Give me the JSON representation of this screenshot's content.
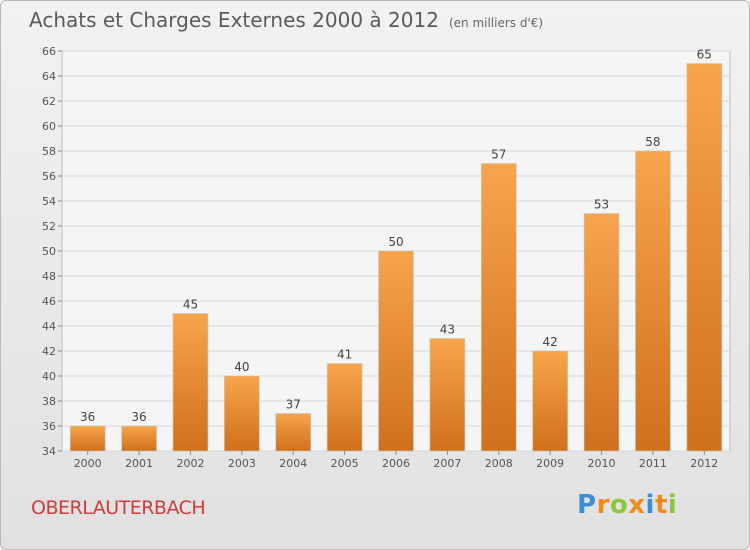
{
  "header": {
    "title": "Achats et Charges Externes 2000 à 2012",
    "unit": "(en milliers d'€)"
  },
  "location": "OBERLAUTERBACH",
  "logo": {
    "letters": [
      "P",
      "r",
      "o",
      "x",
      "i",
      "t",
      "i"
    ],
    "colors": [
      "#3a8fd6",
      "#f08b1d",
      "#8cc63e",
      "#f08b1d",
      "#3a8fd6",
      "#f08b1d",
      "#8cc63e"
    ]
  },
  "chart_data": {
    "type": "bar",
    "title": "Achats et Charges Externes 2000 à 2012",
    "subtitle": "(en milliers d'€)",
    "categories": [
      "2000",
      "2001",
      "2002",
      "2003",
      "2004",
      "2005",
      "2006",
      "2007",
      "2008",
      "2009",
      "2010",
      "2011",
      "2012"
    ],
    "values": [
      36,
      36,
      45,
      40,
      37,
      41,
      50,
      43,
      57,
      42,
      53,
      58,
      65
    ],
    "ylim": [
      34,
      66
    ],
    "yticks": [
      34,
      36,
      38,
      40,
      42,
      44,
      46,
      48,
      50,
      52,
      54,
      56,
      58,
      60,
      62,
      64,
      66
    ],
    "grid": true,
    "bar_color_top": "#f7a54c",
    "bar_color_bottom": "#d0701c",
    "xlabel": "",
    "ylabel": ""
  }
}
